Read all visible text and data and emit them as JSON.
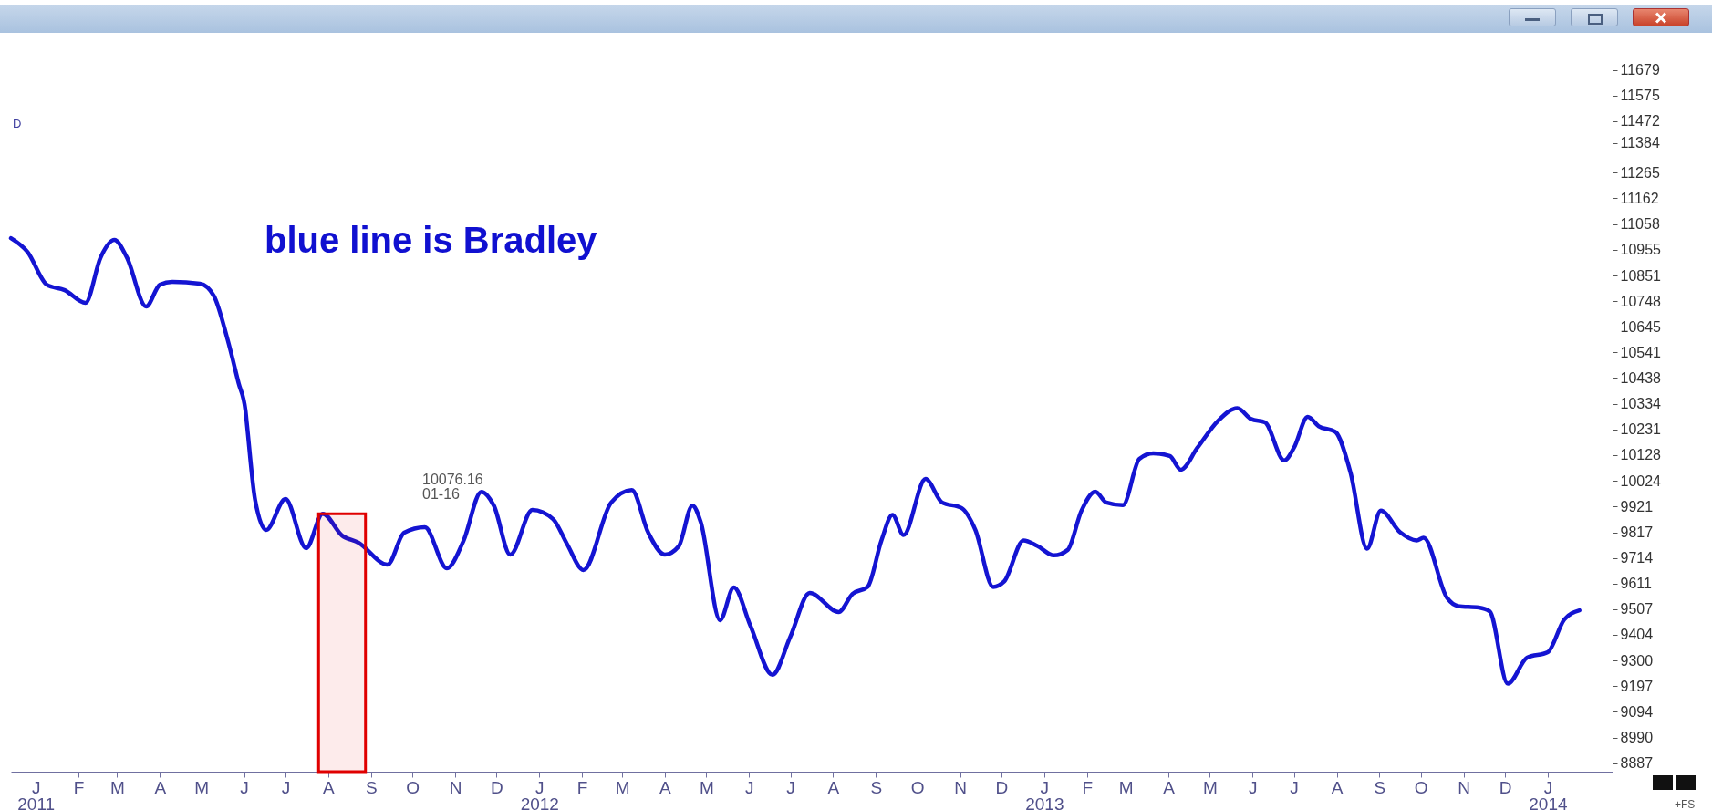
{
  "chart_data": {
    "type": "line",
    "title": "blue line is Bradley",
    "annotations": [
      "D",
      "10076.16",
      "01-16",
      "+FS"
    ],
    "x": [
      "2010-12-14",
      "2010-12-26",
      "2011-01-09",
      "2011-01-22",
      "2011-02-06",
      "2011-02-17",
      "2011-02-27",
      "2011-03-08",
      "2011-03-22",
      "2011-04-01",
      "2011-04-10",
      "2011-04-30",
      "2011-05-10",
      "2011-05-20",
      "2011-05-28",
      "2011-06-02",
      "2011-06-03",
      "2011-06-09",
      "2011-06-17",
      "2011-07-01",
      "2011-07-16",
      "2011-07-28",
      "2011-08-11",
      "2011-08-23",
      "2011-09-13",
      "2011-09-25",
      "2011-10-10",
      "2011-10-26",
      "2011-11-07",
      "2011-11-20",
      "2011-11-29",
      "2011-12-11",
      "2011-12-27",
      "2012-01-11",
      "2012-01-21",
      "2012-02-02",
      "2012-02-22",
      "2012-03-08",
      "2012-03-20",
      "2012-04-01",
      "2012-04-11",
      "2012-04-21",
      "2012-04-27",
      "2012-05-11",
      "2012-05-21",
      "2012-06-02",
      "2012-06-18",
      "2012-07-01",
      "2012-07-15",
      "2012-08-05",
      "2012-08-15",
      "2012-08-26",
      "2012-09-05",
      "2012-09-13",
      "2012-09-21",
      "2012-10-07",
      "2012-10-19",
      "2012-11-02",
      "2012-11-12",
      "2012-11-25",
      "2012-12-03",
      "2012-12-17",
      "2012-12-27",
      "2013-01-08",
      "2013-01-18",
      "2013-01-28",
      "2013-02-07",
      "2013-02-15",
      "2013-02-27",
      "2013-03-11",
      "2013-03-21",
      "2013-04-02",
      "2013-04-10",
      "2013-04-22",
      "2013-05-07",
      "2013-05-21",
      "2013-05-31",
      "2013-06-10",
      "2013-06-24",
      "2013-07-01",
      "2013-07-11",
      "2013-07-19",
      "2013-07-31",
      "2013-08-11",
      "2013-08-23",
      "2013-09-02",
      "2013-09-16",
      "2013-09-28",
      "2013-10-03",
      "2013-10-20",
      "2013-10-28",
      "2013-11-12",
      "2013-11-20",
      "2013-12-03",
      "2013-12-17",
      "2014-01-01",
      "2014-01-13",
      "2014-01-24"
    ],
    "series": [
      {
        "color": "#1414d2",
        "values": [
          11001,
          10946,
          10814,
          10792,
          10741,
          10924,
          10994,
          10924,
          10726,
          10814,
          10825,
          10818,
          10770,
          10594,
          10418,
          10308,
          10255,
          9947,
          9826,
          9951,
          9753,
          9892,
          9804,
          9775,
          9687,
          9815,
          9837,
          9672,
          9782,
          9980,
          9925,
          9727,
          9907,
          9870,
          9771,
          9665,
          9936,
          9987,
          9815,
          9727,
          9760,
          9925,
          9859,
          9463,
          9595,
          9441,
          9243,
          9397,
          9573,
          9496,
          9569,
          9597,
          9784,
          9887,
          9806,
          10032,
          9937,
          9915,
          9828,
          9597,
          9619,
          9784,
          9762,
          9724,
          9746,
          9904,
          9981,
          9937,
          9926,
          10113,
          10135,
          10124,
          10069,
          10157,
          10266,
          10317,
          10273,
          10260,
          10106,
          10157,
          10282,
          10244,
          10222,
          10058,
          9751,
          9904,
          9817,
          9784,
          9795,
          9553,
          9520,
          9514,
          9498,
          9207,
          9312,
          9334,
          9466,
          9503
        ]
      }
    ],
    "xlim": [
      "2010-12-14",
      "2014-02-17"
    ],
    "ylim": [
      8853,
      11740
    ],
    "xticks": [
      {
        "value": "2011-01-01",
        "label": "J\n2011"
      },
      {
        "value": "2011-02-01",
        "label": "F"
      },
      {
        "value": "2011-03-01",
        "label": "M"
      },
      {
        "value": "2011-04-01",
        "label": "A"
      },
      {
        "value": "2011-05-01",
        "label": "M"
      },
      {
        "value": "2011-06-01",
        "label": "J"
      },
      {
        "value": "2011-07-01",
        "label": "J"
      },
      {
        "value": "2011-08-01",
        "label": "A"
      },
      {
        "value": "2011-09-01",
        "label": "S"
      },
      {
        "value": "2011-10-01",
        "label": "O"
      },
      {
        "value": "2011-11-01",
        "label": "N"
      },
      {
        "value": "2011-12-01",
        "label": "D"
      },
      {
        "value": "2012-01-01",
        "label": "J\n2012"
      },
      {
        "value": "2012-02-01",
        "label": "F"
      },
      {
        "value": "2012-03-01",
        "label": "M"
      },
      {
        "value": "2012-04-01",
        "label": "A"
      },
      {
        "value": "2012-05-01",
        "label": "M"
      },
      {
        "value": "2012-06-01",
        "label": "J"
      },
      {
        "value": "2012-07-01",
        "label": "J"
      },
      {
        "value": "2012-08-01",
        "label": "A"
      },
      {
        "value": "2012-09-01",
        "label": "S"
      },
      {
        "value": "2012-10-01",
        "label": "O"
      },
      {
        "value": "2012-11-01",
        "label": "N"
      },
      {
        "value": "2012-12-01",
        "label": "D"
      },
      {
        "value": "2013-01-01",
        "label": "J\n2013"
      },
      {
        "value": "2013-02-01",
        "label": "F"
      },
      {
        "value": "2013-03-01",
        "label": "M"
      },
      {
        "value": "2013-04-01",
        "label": "A"
      },
      {
        "value": "2013-05-01",
        "label": "M"
      },
      {
        "value": "2013-06-01",
        "label": "J"
      },
      {
        "value": "2013-07-01",
        "label": "J"
      },
      {
        "value": "2013-08-01",
        "label": "A"
      },
      {
        "value": "2013-09-01",
        "label": "S"
      },
      {
        "value": "2013-10-01",
        "label": "O"
      },
      {
        "value": "2013-11-01",
        "label": "N"
      },
      {
        "value": "2013-12-01",
        "label": "D"
      },
      {
        "value": "2014-01-01",
        "label": "J\n2014"
      }
    ],
    "yticks": [
      8887,
      8990,
      9094,
      9197,
      9300,
      9404,
      9507,
      9611,
      9714,
      9817,
      9921,
      10024,
      10128,
      10231,
      10334,
      10438,
      10541,
      10645,
      10748,
      10851,
      10955,
      11058,
      11162,
      11265,
      11384,
      11472,
      11575,
      11679
    ],
    "bands": [
      {
        "axis": "x",
        "from": "2011-07-25",
        "to": "2011-08-28",
        "color": "#e00000"
      }
    ]
  }
}
